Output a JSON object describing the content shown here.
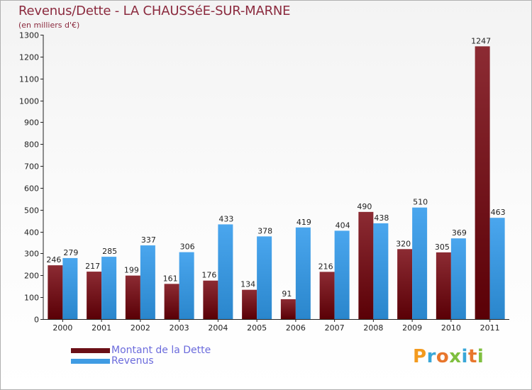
{
  "title": "Revenus/Dette - LA CHAUSSéE-SUR-MARNE",
  "subtitle": "(en milliers d'€)",
  "colors": {
    "dette": "#7a1520",
    "revenus": "#3f9be3",
    "title": "#8b2a3e",
    "legend_text": "#6b6bdc"
  },
  "legend": [
    {
      "label": "Montant de la Dette",
      "color": "#6a0f16"
    },
    {
      "label": "Revenus",
      "color": "#3f9be3"
    }
  ],
  "logo": {
    "letters": [
      "P",
      "r",
      "o",
      "x",
      "i",
      "t",
      "i"
    ],
    "colors": [
      "#f39a1e",
      "#3aa7d8",
      "#e8762c",
      "#7fbf3f",
      "#3aa7d8",
      "#e8762c",
      "#7fbf3f"
    ]
  },
  "chart_data": {
    "type": "bar",
    "categories": [
      "2000",
      "2001",
      "2002",
      "2003",
      "2004",
      "2005",
      "2006",
      "2007",
      "2008",
      "2009",
      "2010",
      "2011"
    ],
    "series": [
      {
        "name": "Montant de la Dette",
        "values": [
          246,
          217,
          199,
          161,
          176,
          134,
          91,
          216,
          490,
          320,
          305,
          1247
        ]
      },
      {
        "name": "Revenus",
        "values": [
          279,
          285,
          337,
          306,
          433,
          378,
          419,
          404,
          438,
          510,
          369,
          463
        ]
      }
    ],
    "yticks": [
      0,
      100,
      200,
      300,
      400,
      500,
      600,
      700,
      800,
      900,
      1000,
      1100,
      1200,
      1300
    ],
    "ylim": [
      0,
      1300
    ],
    "grid": false,
    "legend_position": "bottom-left"
  }
}
